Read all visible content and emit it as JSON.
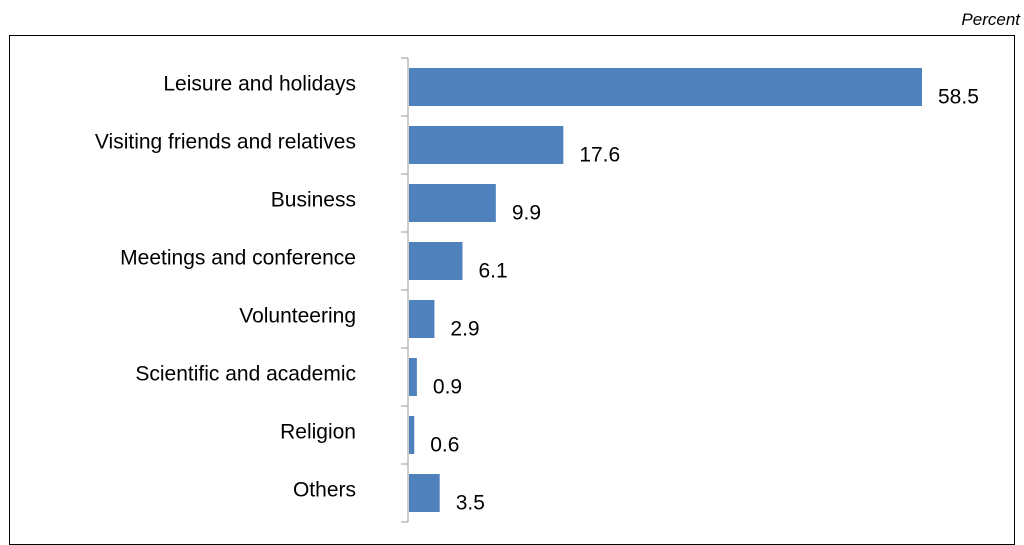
{
  "unit_label": "Percent",
  "chart_data": {
    "type": "bar",
    "orientation": "horizontal",
    "categories": [
      "Leisure and holidays",
      "Visiting friends and relatives",
      "Business",
      "Meetings and conference",
      "Volunteering",
      "Scientific and academic",
      "Religion",
      "Others"
    ],
    "values": [
      58.5,
      17.6,
      9.9,
      6.1,
      2.9,
      0.9,
      0.6,
      3.5
    ],
    "data_labels": [
      "58.5",
      "17.6",
      "9.9",
      "6.1",
      "2.9",
      "0.9",
      "0.6",
      "3.5"
    ],
    "xlim": [
      0,
      58.5
    ],
    "grid": false,
    "bar_color": "#4f81bd"
  }
}
